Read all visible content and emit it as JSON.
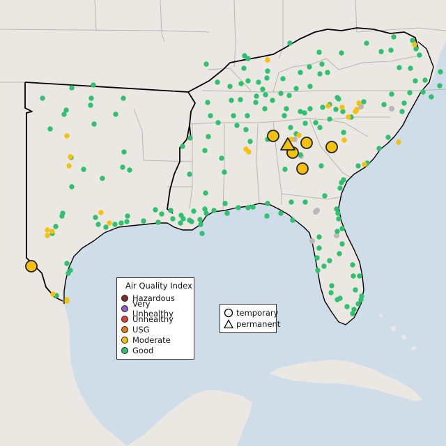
{
  "legend": {
    "title": "Air Quality Index",
    "categories": [
      {
        "label": "Hazardous",
        "color": "#7e2b2b"
      },
      {
        "label": "Very Unhealthy",
        "color": "#8e5dbf"
      },
      {
        "label": "Unhealthy",
        "color": "#e0412e"
      },
      {
        "label": "USG",
        "color": "#e07b13"
      },
      {
        "label": "Moderate",
        "color": "#f4c20d"
      },
      {
        "label": "Good",
        "color": "#2fc16f"
      }
    ]
  },
  "monitor_type_legend": {
    "temporary": "temporary",
    "permanent": "permanent"
  },
  "colors": {
    "ocean": "#cfdde9",
    "land": "#ebe7e3",
    "state_border": "#b9b5b1",
    "highlight_border": "#000000",
    "no_data": "#b8b8b8"
  }
}
